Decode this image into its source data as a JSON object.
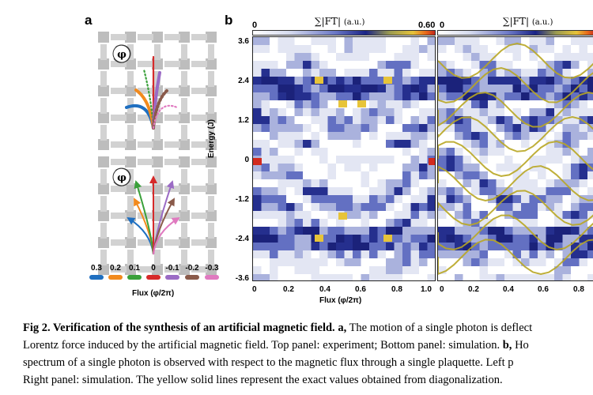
{
  "panel_labels": {
    "a": "a",
    "b": "b"
  },
  "panel_a": {
    "phi_symbol": "φ",
    "legend_values": [
      "0.3",
      "0.2",
      "0.1",
      "0",
      "-0.1",
      "-0.2",
      "-0.3"
    ],
    "legend_colors": [
      "#1f6fc0",
      "#f28a1d",
      "#3aa03a",
      "#d62a2a",
      "#9b6bc5",
      "#8a5a4a",
      "#e07ac0"
    ],
    "flux_label": "Flux (φ/2π)"
  },
  "panel_b": {
    "colorbar_left": {
      "title": "∑|FT|",
      "unit": "(a.u.)",
      "min": "0",
      "max": "0.60"
    },
    "colorbar_right": {
      "title": "∑|FT|",
      "unit": "(a.u.)",
      "min": "0"
    },
    "y_axis": {
      "label": "Energy (J)",
      "ticks": [
        "3.6",
        "2.4",
        "1.2",
        "0",
        "-1.2",
        "-2.4",
        "-3.6"
      ]
    },
    "x_axis": {
      "label": "Flux (φ/2π)",
      "ticks_left": [
        "0",
        "0.2",
        "0.4",
        "0.6",
        "0.8",
        "1.0"
      ],
      "ticks_right": [
        "0",
        "0.2",
        "0.4",
        "0.6",
        "0.8"
      ]
    }
  },
  "caption": {
    "line1_bold": "Fig 2. Verification of the synthesis of an artificial magnetic field.",
    "line1_a": "a,",
    "line1_rest": "The motion of a single photon is deflect",
    "line2": "Lorentz force induced by the artificial magnetic field. Top panel: experiment; Bottom panel: simulation.",
    "line2_b": "b,",
    "line2_rest": "Ho",
    "line3": "spectrum of a single photon is observed with respect to the magnetic flux through a single plaquette. Left p",
    "line4": "Right panel: simulation. The yellow solid lines represent the exact values obtained from diagonalization."
  }
}
